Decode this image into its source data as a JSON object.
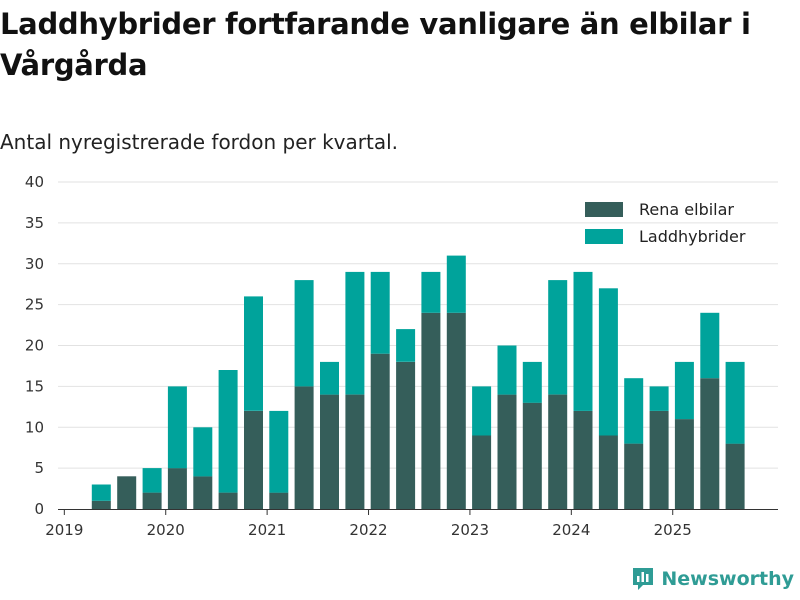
{
  "header": {
    "title": "Laddhybrider fortfarande vanligare än elbilar i Vårgårda",
    "subtitle": "Antal nyregistrerade fordon per kvartal."
  },
  "brand": {
    "name": "Newsworthy",
    "icon": "bar-chart-logo-icon",
    "color": "#2f9c95"
  },
  "chart_data": {
    "type": "bar",
    "stacked": true,
    "title": "Laddhybrider fortfarande vanligare än elbilar i Vårgårda",
    "subtitle": "Antal nyregistrerade fordon per kvartal.",
    "xlabel": "",
    "ylabel": "",
    "ylim": [
      0,
      40
    ],
    "yticks": [
      0,
      5,
      10,
      15,
      20,
      25,
      30,
      35,
      40
    ],
    "grid": true,
    "legend_position": "top-right",
    "categories": [
      "2019-Q1",
      "2019-Q2",
      "2019-Q3",
      "2019-Q4",
      "2020-Q1",
      "2020-Q2",
      "2020-Q3",
      "2020-Q4",
      "2021-Q1",
      "2021-Q2",
      "2021-Q3",
      "2021-Q4",
      "2022-Q1",
      "2022-Q2",
      "2022-Q3",
      "2022-Q4",
      "2023-Q1",
      "2023-Q2",
      "2023-Q3",
      "2023-Q4",
      "2024-Q1",
      "2024-Q2",
      "2024-Q3",
      "2024-Q4",
      "2025-Q1",
      "2025-Q2",
      "2025-Q3"
    ],
    "x_tick_labels": [
      {
        "label": "2019",
        "index": 0
      },
      {
        "label": "2020",
        "index": 4
      },
      {
        "label": "2021",
        "index": 8
      },
      {
        "label": "2022",
        "index": 12
      },
      {
        "label": "2023",
        "index": 16
      },
      {
        "label": "2024",
        "index": 20
      },
      {
        "label": "2025",
        "index": 24
      }
    ],
    "series": [
      {
        "name": "Rena elbilar",
        "color": "#355e5a",
        "values": [
          0,
          1,
          4,
          2,
          5,
          4,
          2,
          12,
          2,
          15,
          14,
          14,
          19,
          18,
          24,
          24,
          9,
          14,
          13,
          14,
          12,
          9,
          8,
          12,
          11,
          16,
          8
        ]
      },
      {
        "name": "Laddhybrider",
        "color": "#00a39b",
        "values": [
          0,
          2,
          0,
          3,
          10,
          6,
          15,
          14,
          10,
          13,
          4,
          15,
          10,
          4,
          5,
          7,
          6,
          6,
          5,
          14,
          17,
          18,
          8,
          3,
          7,
          8,
          10
        ]
      }
    ]
  }
}
